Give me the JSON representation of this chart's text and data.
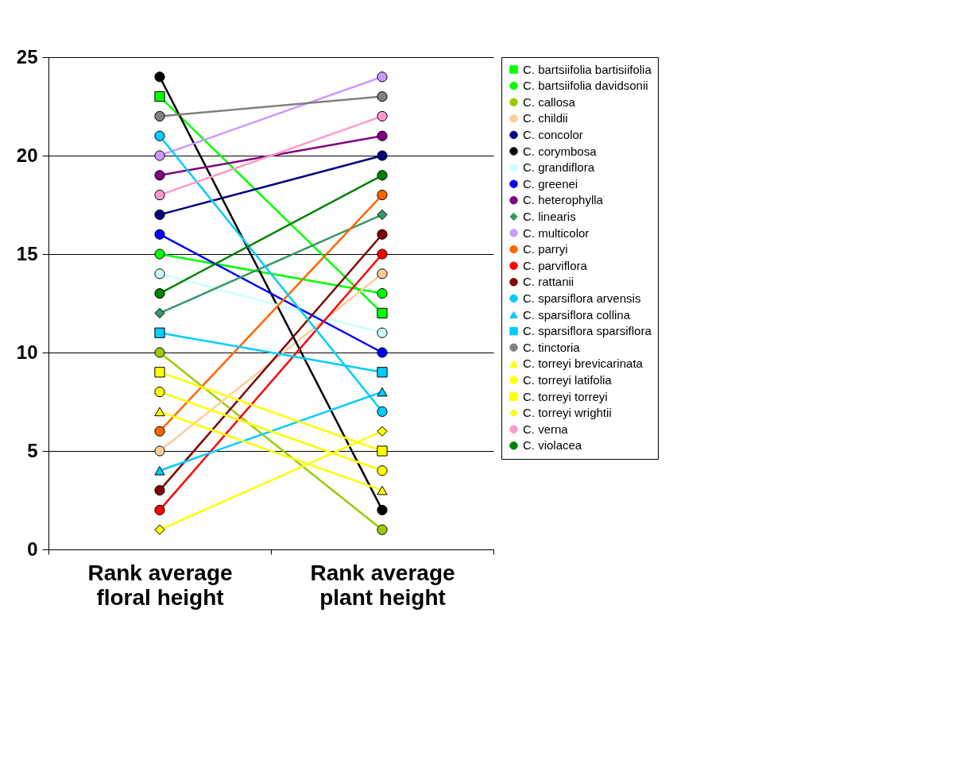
{
  "chart_data": {
    "type": "line",
    "categories": [
      "Rank average floral height",
      "Rank average plant height"
    ],
    "ylim": [
      0,
      25
    ],
    "yticks": [
      0,
      5,
      10,
      15,
      20,
      25
    ],
    "grid": "y",
    "legend": "right",
    "line_style": "solid",
    "series": [
      {
        "name": "C. bartsiifolia bartisiifolia",
        "color": "#00ff00",
        "marker": "square",
        "values": [
          23,
          12
        ]
      },
      {
        "name": "C. bartsiifolia davidsonii",
        "color": "#00ff00",
        "marker": "circle",
        "values": [
          15,
          13
        ]
      },
      {
        "name": "C. callosa",
        "color": "#99cc00",
        "marker": "circle",
        "values": [
          10,
          1
        ]
      },
      {
        "name": "C. childii",
        "color": "#ffcc99",
        "marker": "circle",
        "values": [
          5,
          14
        ]
      },
      {
        "name": "C. concolor",
        "color": "#000080",
        "marker": "circle",
        "values": [
          17,
          20
        ]
      },
      {
        "name": "C. corymbosa",
        "color": "#000000",
        "marker": "circle",
        "values": [
          24,
          2
        ]
      },
      {
        "name": "C. grandiflora",
        "color": "#ccffff",
        "marker": "circle",
        "values": [
          14,
          11
        ]
      },
      {
        "name": "C. greenei",
        "color": "#0000ff",
        "marker": "circle",
        "values": [
          16,
          10
        ]
      },
      {
        "name": "C. heterophylla",
        "color": "#800080",
        "marker": "circle",
        "values": [
          19,
          21
        ]
      },
      {
        "name": "C. linearis",
        "color": "#339966",
        "marker": "diamond",
        "values": [
          12,
          17
        ]
      },
      {
        "name": "C. multicolor",
        "color": "#cc99ff",
        "marker": "circle",
        "values": [
          20,
          24
        ]
      },
      {
        "name": "C. parryi",
        "color": "#ff6600",
        "marker": "circle",
        "values": [
          6,
          18
        ]
      },
      {
        "name": "C. parviflora",
        "color": "#ff0000",
        "marker": "circle",
        "values": [
          2,
          15
        ]
      },
      {
        "name": "C. rattanii",
        "color": "#800000",
        "marker": "circle",
        "values": [
          3,
          16
        ]
      },
      {
        "name": "C. sparsiflora arvensis",
        "color": "#00ccff",
        "marker": "circle",
        "values": [
          21,
          7
        ]
      },
      {
        "name": "C. sparsiflora collina",
        "color": "#00ccff",
        "marker": "triangle",
        "values": [
          4,
          8
        ]
      },
      {
        "name": "C. sparsiflora sparsiflora",
        "color": "#00ccff",
        "marker": "square",
        "values": [
          11,
          9
        ]
      },
      {
        "name": "C. tinctoria",
        "color": "#808080",
        "marker": "circle",
        "values": [
          22,
          23
        ]
      },
      {
        "name": "C. torreyi brevicarinata",
        "color": "#ffff00",
        "marker": "triangle",
        "values": [
          7,
          3
        ]
      },
      {
        "name": "C. torreyi latifolia",
        "color": "#ffff00",
        "marker": "circle",
        "values": [
          8,
          4
        ]
      },
      {
        "name": "C. torreyi torreyi",
        "color": "#ffff00",
        "marker": "square",
        "values": [
          9,
          5
        ]
      },
      {
        "name": "C. torreyi wrightii",
        "color": "#ffff00",
        "marker": "diamond",
        "values": [
          1,
          6
        ]
      },
      {
        "name": "C. verna",
        "color": "#ff99cc",
        "marker": "circle",
        "values": [
          18,
          22
        ]
      },
      {
        "name": "C. violacea",
        "color": "#008000",
        "marker": "circle",
        "values": [
          13,
          19
        ]
      }
    ]
  }
}
